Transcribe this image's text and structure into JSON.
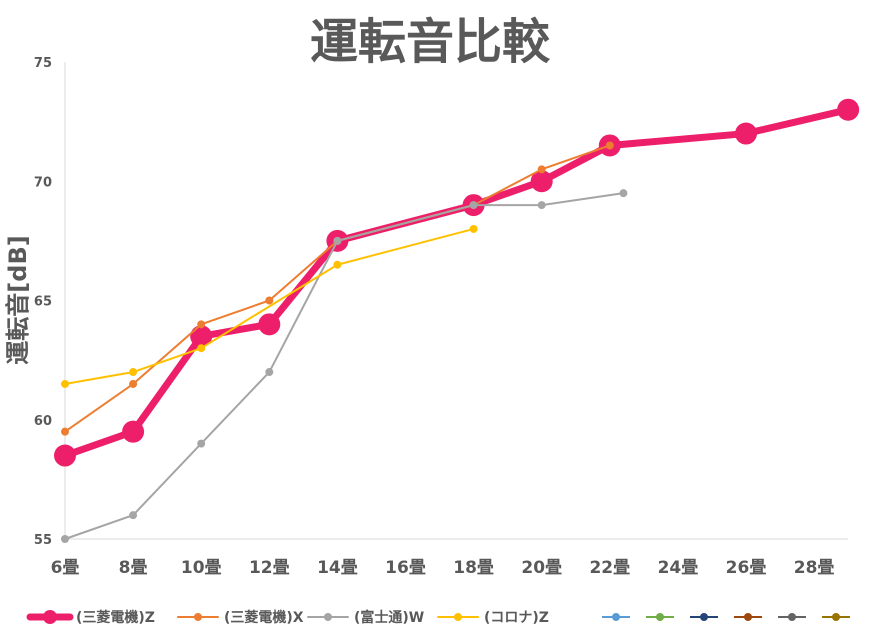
{
  "chart_data": {
    "type": "line",
    "title": "運転音比較",
    "ylabel": "運転音[dB]",
    "xlabel": "",
    "categories": [
      "6畳",
      "8畳",
      "10畳",
      "12畳",
      "14畳",
      "16畳",
      "18畳",
      "20畳",
      "22畳",
      "24畳",
      "26畳",
      "28畳"
    ],
    "ylim": [
      55,
      75
    ],
    "yticks": [
      "55",
      "60",
      "65",
      "70",
      "75"
    ],
    "grid": false,
    "legend_position": "bottom",
    "series": [
      {
        "name": "(三菱電機)Z",
        "color": "#EE1F6A",
        "points": [
          [
            0,
            58.5
          ],
          [
            1,
            59.5
          ],
          [
            2,
            63.5
          ],
          [
            3,
            64
          ],
          [
            4,
            67.5
          ],
          [
            6,
            69
          ],
          [
            7,
            70
          ],
          [
            8,
            71.5
          ],
          [
            10,
            72
          ],
          [
            11.5,
            73
          ]
        ]
      },
      {
        "name": "(三菱電機)X",
        "color": "#ED7D31",
        "points": [
          [
            0,
            59.5
          ],
          [
            1,
            61.5
          ],
          [
            2,
            64
          ],
          [
            3,
            65
          ],
          [
            4,
            67.5
          ],
          [
            6,
            69
          ],
          [
            7,
            70.5
          ],
          [
            8,
            71.5
          ]
        ]
      },
      {
        "name": "(富士通)W",
        "color": "#A5A5A5",
        "points": [
          [
            0,
            55
          ],
          [
            1,
            56
          ],
          [
            2,
            59
          ],
          [
            3,
            62
          ],
          [
            4,
            67.5
          ],
          [
            6,
            69
          ],
          [
            7,
            69
          ],
          [
            8.2,
            69.5
          ]
        ]
      },
      {
        "name": "(コロナ)Z",
        "color": "#FFC000",
        "points": [
          [
            0,
            61.5
          ],
          [
            1,
            62
          ],
          [
            2,
            63
          ],
          [
            4,
            66.5
          ],
          [
            6,
            68
          ]
        ]
      }
    ],
    "extra_legend_colors": [
      "#5B9BD5",
      "#70AD47",
      "#264478",
      "#9E480E",
      "#636363",
      "#997300"
    ]
  }
}
